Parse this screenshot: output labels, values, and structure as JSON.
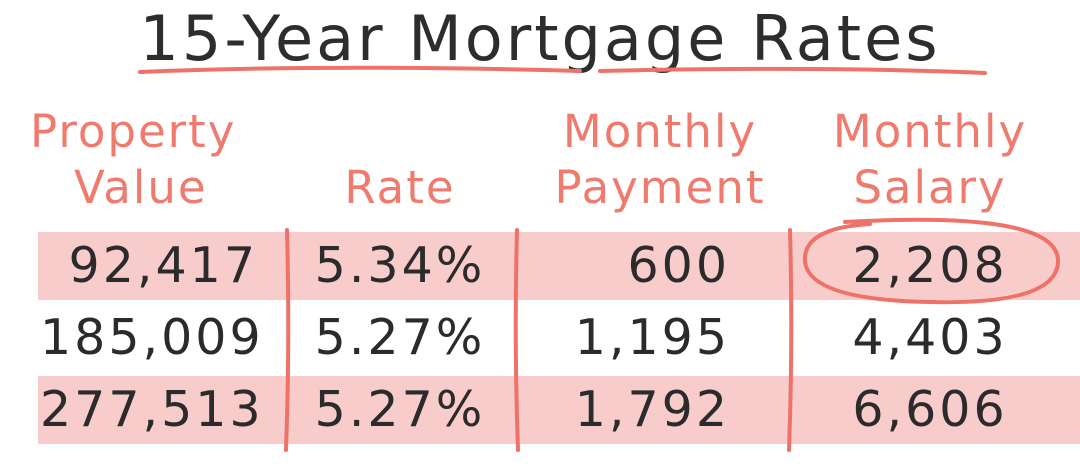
{
  "chart_data": {
    "type": "table",
    "title": "15-Year Mortgage Rates",
    "columns": [
      "Property Value",
      "Rate",
      "Monthly Payment",
      "Monthly Salary"
    ],
    "rows": [
      [
        "92,417",
        "5.34%",
        "600",
        "2,208"
      ],
      [
        "185,009",
        "5.27%",
        "1,195",
        "4,403"
      ],
      [
        "277,513",
        "5.27%",
        "1,792",
        "6,606"
      ]
    ],
    "highlighted_rows": [
      0,
      2
    ],
    "circled_cell": {
      "row": 0,
      "column": "Monthly Salary"
    }
  },
  "colors": {
    "accent": "#ef7b6e",
    "row_highlight": "#f9cccc",
    "text": "#2b2b2b"
  },
  "headers": {
    "c0": {
      "line1": "Property",
      "line2": "Value"
    },
    "c1": {
      "line1": "",
      "line2": "Rate"
    },
    "c2": {
      "line1": "Monthly",
      "line2": "Payment"
    },
    "c3": {
      "line1": "Monthly",
      "line2": "Salary"
    }
  }
}
